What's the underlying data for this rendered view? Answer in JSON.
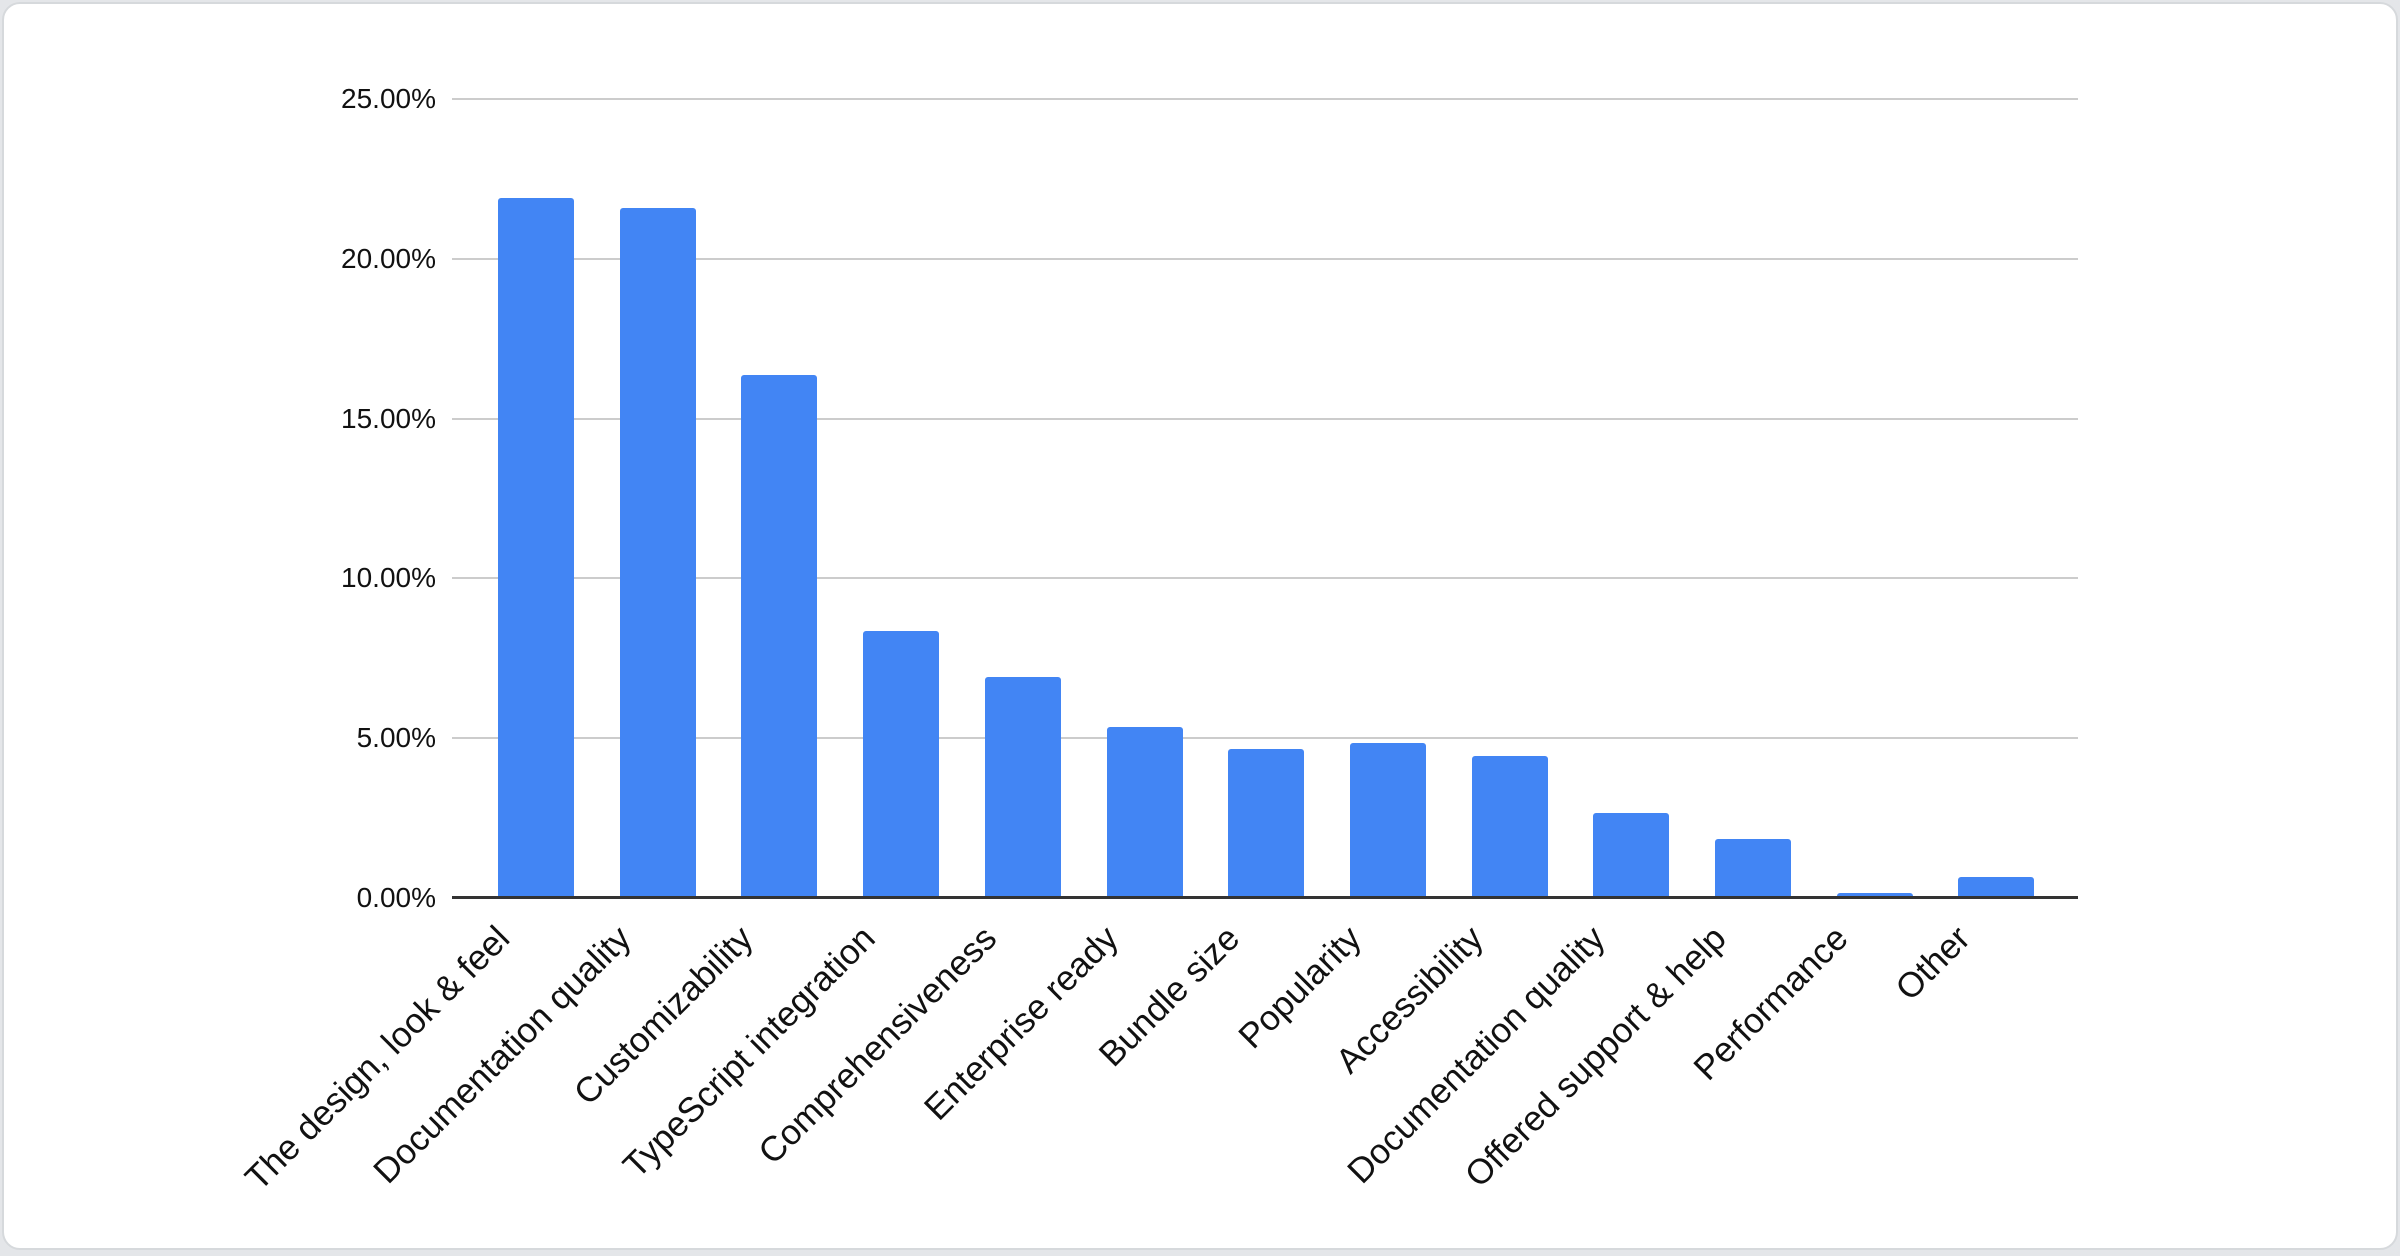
{
  "page": {
    "background": "#e4e6e9",
    "card_background": "#ffffff",
    "card_border": "#d6d9dc"
  },
  "chart_data": {
    "type": "bar",
    "title": "",
    "xlabel": "",
    "ylabel": "",
    "categories": [
      "The design, look & feel",
      "Documentation quality",
      "Customizability",
      "TypeScript integration",
      "Comprehensiveness",
      "Enterprise ready",
      "Bundle size",
      "Popularity",
      "Accessibility",
      "Documentation quality",
      "Offered support & help",
      "Performance",
      "Other"
    ],
    "values": [
      21.9,
      21.6,
      16.35,
      8.35,
      6.9,
      5.35,
      4.65,
      4.85,
      4.45,
      2.65,
      1.85,
      0.15,
      0.65
    ],
    "value_unit": "%",
    "y_ticks": [
      "25.00%",
      "20.00%",
      "15.00%",
      "10.00%",
      "5.00%",
      "0.00%"
    ],
    "ylim": [
      0,
      25
    ],
    "grid": true,
    "legend_position": "none",
    "bar_color": "#4285F4",
    "gridline_color": "#cccccc",
    "axis_line_color": "#333333",
    "text_color": "#111111"
  }
}
